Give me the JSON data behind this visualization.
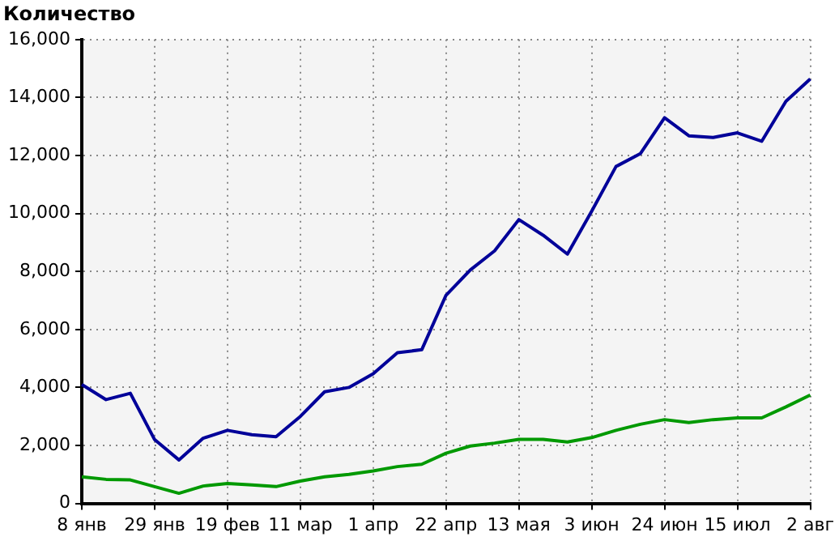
{
  "chart_data": {
    "type": "line",
    "title": "Количество",
    "categories": [
      "8 янв",
      null,
      null,
      "29 янв",
      null,
      null,
      "19 фев",
      null,
      null,
      "11 мар",
      null,
      null,
      "1 апр",
      null,
      null,
      "22 апр",
      null,
      null,
      "13 мая",
      null,
      null,
      "3 июн",
      null,
      null,
      "24 июн",
      null,
      null,
      "15 июл",
      null,
      null,
      "2 авг"
    ],
    "series": [
      {
        "color": "#000099",
        "values": [
          4100,
          3580,
          3800,
          2200,
          1500,
          2250,
          2520,
          2370,
          2300,
          3000,
          3850,
          4000,
          4470,
          5200,
          5300,
          7180,
          8050,
          8710,
          9790,
          9250,
          8600,
          10080,
          11620,
          12060,
          13300,
          12680,
          12620,
          12780,
          12490,
          13870,
          14640
        ]
      },
      {
        "color": "#009900",
        "values": [
          920,
          830,
          810,
          580,
          350,
          600,
          690,
          640,
          580,
          770,
          920,
          1000,
          1120,
          1270,
          1350,
          1730,
          1980,
          2080,
          2210,
          2210,
          2120,
          2270,
          2520,
          2730,
          2890,
          2790,
          2890,
          2950,
          2950,
          3330,
          3740
        ]
      }
    ],
    "ylim": [
      0,
      16000
    ],
    "yticks": [
      0,
      {
        "value": 2000,
        "label": "2,000"
      },
      {
        "value": 4000,
        "label": "4,000"
      },
      {
        "value": 6000,
        "label": "6,000"
      },
      {
        "value": 8000,
        "label": "8,000"
      },
      {
        "value": 10000,
        "label": "10,000"
      },
      {
        "value": 12000,
        "label": "12,000"
      },
      {
        "value": 14000,
        "label": "14,000"
      },
      {
        "value": 16000,
        "label": "16,000"
      }
    ],
    "grid": true,
    "legend": false,
    "marker": "none",
    "line_style": "solid"
  }
}
